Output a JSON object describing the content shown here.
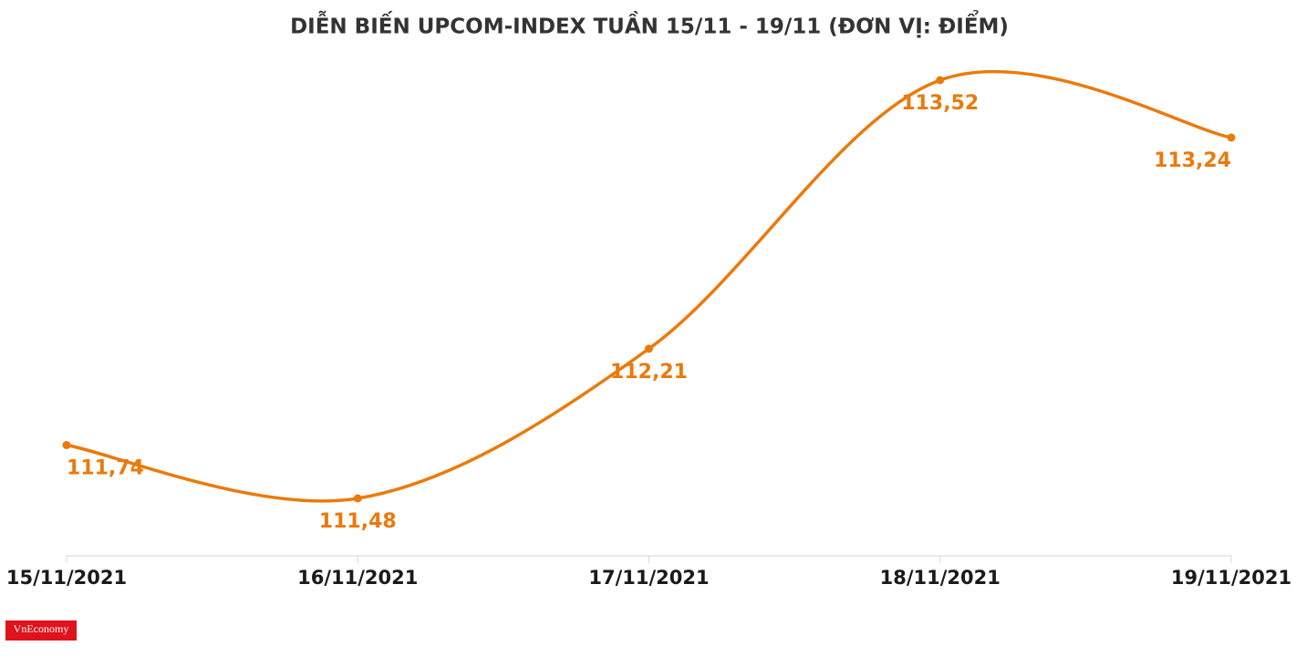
{
  "chart_data": {
    "type": "line",
    "title": "DIỄN BIẾN UPCOM-INDEX TUẦN 15/11 - 19/11 (ĐƠN VỊ: ĐIỂM)",
    "categories": [
      "15/11/2021",
      "16/11/2021",
      "17/11/2021",
      "18/11/2021",
      "19/11/2021"
    ],
    "values": [
      111.74,
      111.48,
      112.21,
      113.52,
      113.24
    ],
    "value_labels": [
      "111,74",
      "111,48",
      "112,21",
      "113,52",
      "113,24"
    ],
    "color": "#ea7a0c"
  },
  "logo": "VnEconomy"
}
